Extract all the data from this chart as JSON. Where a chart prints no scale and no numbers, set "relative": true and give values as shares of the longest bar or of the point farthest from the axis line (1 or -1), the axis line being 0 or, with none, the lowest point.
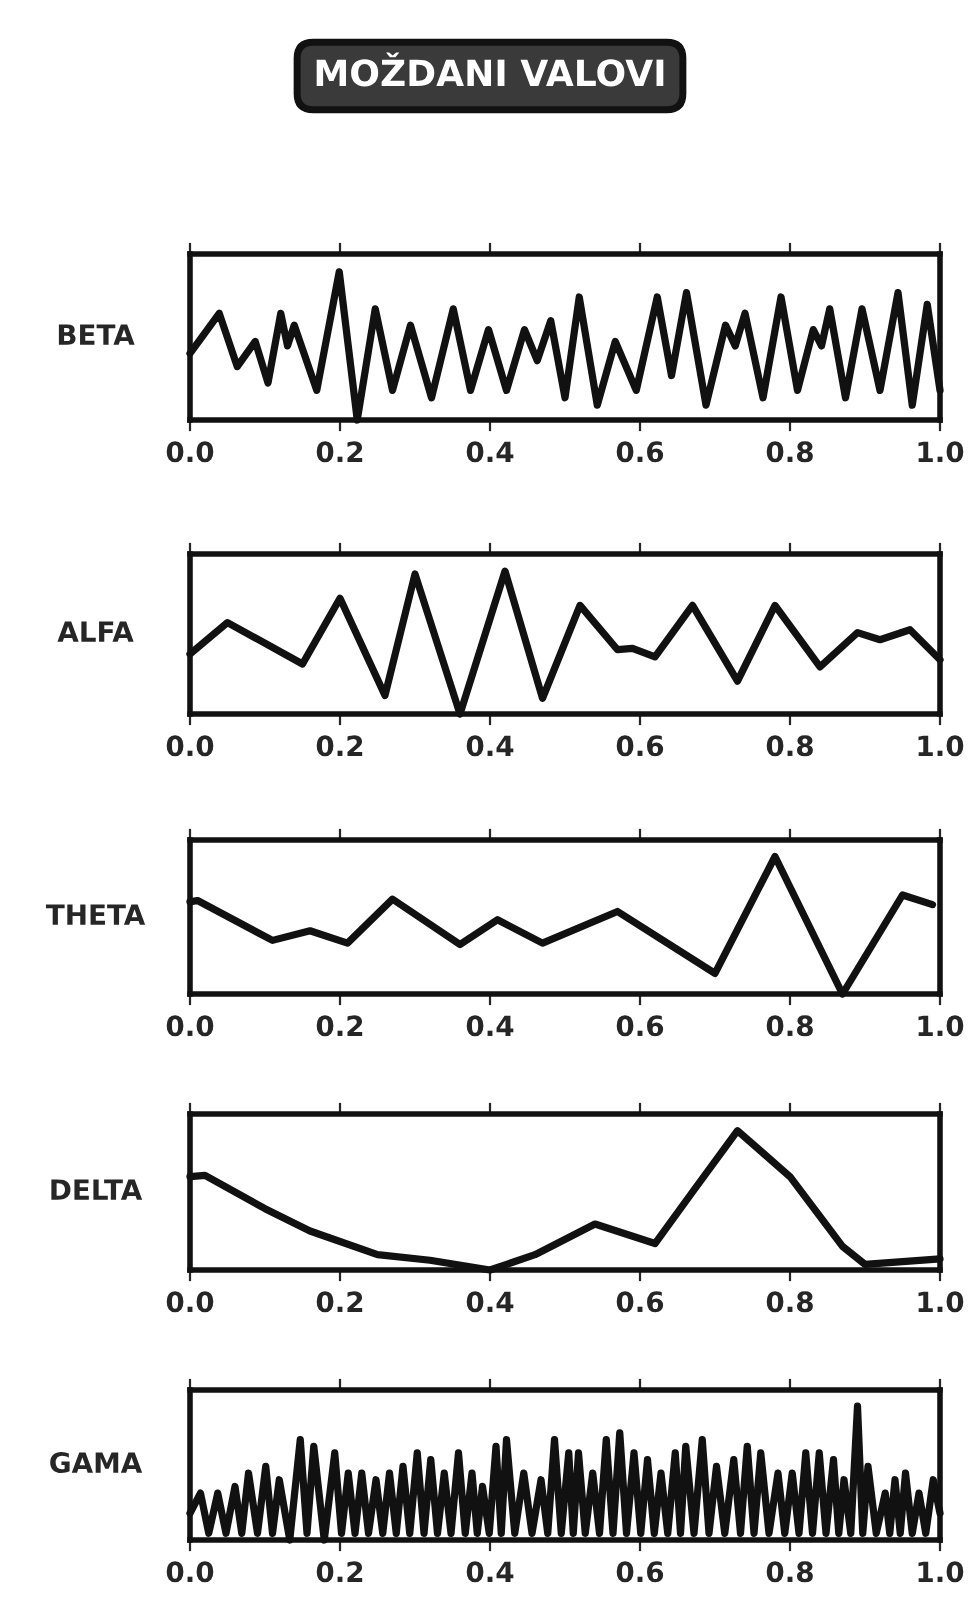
{
  "chart_data": [
    {
      "type": "line",
      "title": "MOŽDANI VALOVI",
      "ylabel": "BETA",
      "relative": true,
      "xlim": [
        0,
        1
      ],
      "xticks": [
        {
          "value": 0,
          "label": "0.0"
        },
        {
          "value": 0.2,
          "label": "0.2"
        },
        {
          "value": 0.4,
          "label": "0.4"
        },
        {
          "value": 0.6,
          "label": "0.6"
        },
        {
          "value": 0.8,
          "label": "0.8"
        },
        {
          "value": 1,
          "label": "1.0"
        }
      ],
      "marker": "none",
      "line_style": "solid",
      "series": [
        {
          "color": "#111111",
          "x": [
            0.0,
            0.039,
            0.063,
            0.087,
            0.104,
            0.121,
            0.13,
            0.139,
            0.169,
            0.199,
            0.223,
            0.247,
            0.27,
            0.294,
            0.322,
            0.351,
            0.374,
            0.398,
            0.422,
            0.446,
            0.463,
            0.481,
            0.5,
            0.519,
            0.543,
            0.567,
            0.595,
            0.623,
            0.642,
            0.662,
            0.688,
            0.714,
            0.727,
            0.74,
            0.764,
            0.788,
            0.81,
            0.831,
            0.842,
            0.853,
            0.874,
            0.896,
            0.92,
            0.944,
            0.963,
            0.983,
            1.0
          ],
          "values": [
            0.45,
            0.72,
            0.36,
            0.53,
            0.25,
            0.72,
            0.5,
            0.64,
            0.2,
            1,
            0,
            0.75,
            0.2,
            0.64,
            0.15,
            0.75,
            0.2,
            0.61,
            0.2,
            0.61,
            0.4,
            0.67,
            0.15,
            0.83,
            0.1,
            0.53,
            0.2,
            0.83,
            0.3,
            0.86,
            0.1,
            0.64,
            0.5,
            0.72,
            0.15,
            0.83,
            0.2,
            0.61,
            0.5,
            0.75,
            0.15,
            0.75,
            0.2,
            0.86,
            0.1,
            0.78,
            0.2
          ]
        }
      ]
    },
    {
      "type": "line",
      "ylabel": "ALFA",
      "relative": true,
      "xlim": [
        0,
        1
      ],
      "xticks": [
        {
          "value": 0,
          "label": "0.0"
        },
        {
          "value": 0.2,
          "label": "0.2"
        },
        {
          "value": 0.4,
          "label": "0.4"
        },
        {
          "value": 0.6,
          "label": "0.6"
        },
        {
          "value": 0.8,
          "label": "0.8"
        },
        {
          "value": 1,
          "label": "1.0"
        }
      ],
      "marker": "none",
      "line_style": "solid",
      "series": [
        {
          "color": "#111111",
          "x": [
            0.0,
            0.05,
            0.15,
            0.2,
            0.26,
            0.3,
            0.36,
            0.42,
            0.47,
            0.52,
            0.57,
            0.59,
            0.62,
            0.67,
            0.73,
            0.78,
            0.84,
            0.89,
            0.92,
            0.96,
            1.0
          ],
          "values": [
            0.42,
            0.64,
            0.35,
            0.81,
            0.13,
            0.98,
            0,
            1,
            0.11,
            0.76,
            0.45,
            0.46,
            0.4,
            0.76,
            0.23,
            0.76,
            0.33,
            0.57,
            0.52,
            0.59,
            0.38
          ]
        }
      ]
    },
    {
      "type": "line",
      "ylabel": "THETA",
      "relative": true,
      "xlim": [
        0,
        1
      ],
      "xticks": [
        {
          "value": 0,
          "label": "0.0"
        },
        {
          "value": 0.2,
          "label": "0.2"
        },
        {
          "value": 0.4,
          "label": "0.4"
        },
        {
          "value": 0.6,
          "label": "0.6"
        },
        {
          "value": 0.8,
          "label": "0.8"
        },
        {
          "value": 1,
          "label": "1.0"
        }
      ],
      "marker": "none",
      "line_style": "solid",
      "series": [
        {
          "color": "#111111",
          "x": [
            0.0,
            0.01,
            0.11,
            0.16,
            0.21,
            0.27,
            0.36,
            0.41,
            0.47,
            0.57,
            0.7,
            0.78,
            0.87,
            0.95,
            0.99
          ],
          "values": [
            0.67,
            0.68,
            0.39,
            0.46,
            0.37,
            0.69,
            0.36,
            0.54,
            0.37,
            0.6,
            0.15,
            1,
            0,
            0.72,
            0.65
          ]
        }
      ]
    },
    {
      "type": "line",
      "ylabel": "DELTA",
      "relative": true,
      "xlim": [
        0,
        1
      ],
      "xticks": [
        {
          "value": 0,
          "label": "0.0"
        },
        {
          "value": 0.2,
          "label": "0.2"
        },
        {
          "value": 0.4,
          "label": "0.4"
        },
        {
          "value": 0.6,
          "label": "0.6"
        },
        {
          "value": 0.8,
          "label": "0.8"
        },
        {
          "value": 1,
          "label": "1.0"
        }
      ],
      "marker": "none",
      "line_style": "solid",
      "series": [
        {
          "color": "#111111",
          "x": [
            0.0,
            0.02,
            0.1,
            0.16,
            0.25,
            0.32,
            0.4,
            0.46,
            0.54,
            0.62,
            0.67,
            0.73,
            0.8,
            0.87,
            0.9,
            1.0
          ],
          "values": [
            0.67,
            0.68,
            0.44,
            0.28,
            0.11,
            0.07,
            0,
            0.11,
            0.33,
            0.19,
            0.56,
            1,
            0.67,
            0.17,
            0.04,
            0.08
          ]
        }
      ]
    },
    {
      "type": "line",
      "ylabel": "GAMA",
      "relative": true,
      "xlim": [
        0,
        1
      ],
      "xticks": [
        {
          "value": 0,
          "label": "0.0"
        },
        {
          "value": 0.2,
          "label": "0.2"
        },
        {
          "value": 0.4,
          "label": "0.4"
        },
        {
          "value": 0.6,
          "label": "0.6"
        },
        {
          "value": 0.8,
          "label": "0.8"
        },
        {
          "value": 1,
          "label": "1.0"
        }
      ],
      "marker": "none",
      "line_style": "solid",
      "series": [
        {
          "color": "#111111",
          "x": [
            0.0,
            0.014,
            0.025,
            0.037,
            0.048,
            0.06,
            0.069,
            0.078,
            0.09,
            0.101,
            0.11,
            0.119,
            0.133,
            0.147,
            0.156,
            0.165,
            0.179,
            0.193,
            0.202,
            0.211,
            0.22,
            0.229,
            0.238,
            0.248,
            0.257,
            0.266,
            0.275,
            0.284,
            0.293,
            0.303,
            0.312,
            0.321,
            0.33,
            0.339,
            0.348,
            0.358,
            0.367,
            0.376,
            0.383,
            0.39,
            0.399,
            0.408,
            0.415,
            0.422,
            0.433,
            0.445,
            0.456,
            0.468,
            0.477,
            0.486,
            0.495,
            0.505,
            0.511,
            0.518,
            0.527,
            0.537,
            0.546,
            0.555,
            0.564,
            0.573,
            0.582,
            0.592,
            0.601,
            0.61,
            0.619,
            0.628,
            0.637,
            0.647,
            0.654,
            0.661,
            0.672,
            0.683,
            0.692,
            0.702,
            0.713,
            0.725,
            0.734,
            0.743,
            0.752,
            0.761,
            0.772,
            0.784,
            0.793,
            0.803,
            0.812,
            0.821,
            0.83,
            0.839,
            0.848,
            0.858,
            0.865,
            0.872,
            0.881,
            0.89,
            0.897,
            0.904,
            0.915,
            0.927,
            0.933,
            0.94,
            0.947,
            0.954,
            0.963,
            0.972,
            0.981,
            0.991,
            1.0
          ],
          "values": [
            0.2,
            0.35,
            0.05,
            0.35,
            0.05,
            0.4,
            0.05,
            0.5,
            0.05,
            0.55,
            0.05,
            0.45,
            0.0,
            0.75,
            0.05,
            0.7,
            0.0,
            0.65,
            0.05,
            0.5,
            0.05,
            0.5,
            0.05,
            0.45,
            0.05,
            0.5,
            0.05,
            0.55,
            0.05,
            0.65,
            0.05,
            0.6,
            0.05,
            0.5,
            0.05,
            0.65,
            0.05,
            0.5,
            0.05,
            0.4,
            0.05,
            0.7,
            0.05,
            0.75,
            0.05,
            0.5,
            0.05,
            0.45,
            0.05,
            0.75,
            0.05,
            0.65,
            0.05,
            0.65,
            0.05,
            0.5,
            0.05,
            0.75,
            0.05,
            0.8,
            0.05,
            0.65,
            0.05,
            0.6,
            0.05,
            0.5,
            0.05,
            0.65,
            0.05,
            0.7,
            0.05,
            0.75,
            0.05,
            0.55,
            0.05,
            0.6,
            0.05,
            0.7,
            0.05,
            0.65,
            0.05,
            0.5,
            0.05,
            0.5,
            0.05,
            0.65,
            0.05,
            0.65,
            0.05,
            0.6,
            0.05,
            0.45,
            0.05,
            1,
            0.05,
            0.55,
            0.05,
            0.35,
            0.05,
            0.45,
            0.05,
            0.5,
            0.05,
            0.35,
            0.05,
            0.45,
            0.2
          ]
        }
      ]
    }
  ]
}
